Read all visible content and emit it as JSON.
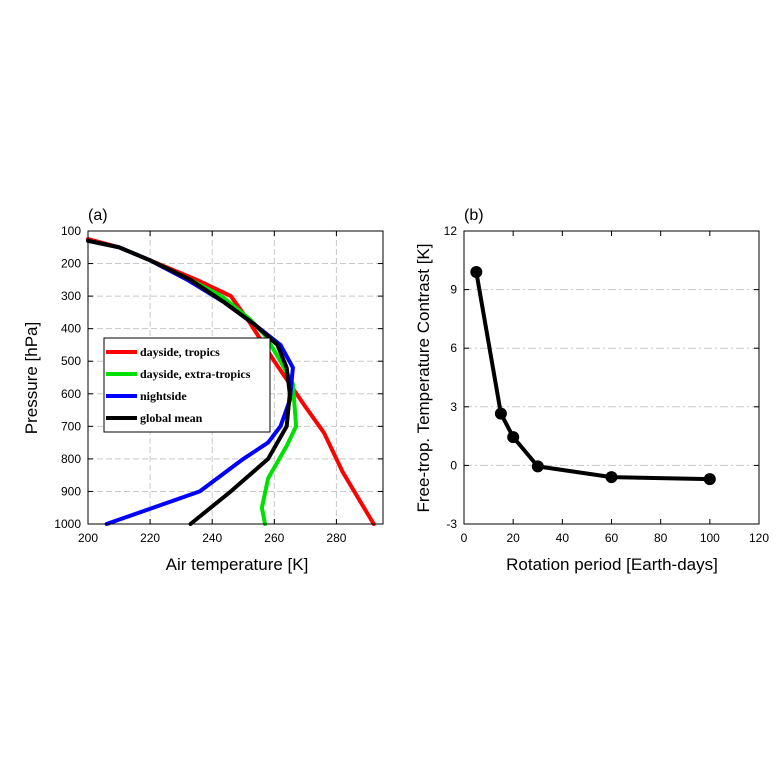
{
  "chart_data": [
    {
      "type": "line",
      "panel_label": "(a)",
      "xlabel": "Air temperature [K]",
      "ylabel": "Pressure [hPa]",
      "xlim": [
        200,
        295
      ],
      "ylim": [
        1000,
        100
      ],
      "y_inverted": true,
      "xticks": [
        200,
        220,
        240,
        260,
        280
      ],
      "yticks": [
        100,
        200,
        300,
        400,
        500,
        600,
        700,
        800,
        900,
        1000
      ],
      "grid": true,
      "legend_position": "center-left",
      "series": [
        {
          "name": "dayside, tropics",
          "color": "#ff0000",
          "points": [
            [
              200,
              125
            ],
            [
              210,
              150
            ],
            [
              220,
              190
            ],
            [
              235,
              250
            ],
            [
              246,
              300
            ],
            [
              252,
              380
            ],
            [
              256,
              440
            ],
            [
              260,
              500
            ],
            [
              265,
              570
            ],
            [
              270,
              640
            ],
            [
              276,
              720
            ],
            [
              282,
              840
            ],
            [
              292,
              1000
            ]
          ]
        },
        {
          "name": "dayside, extra-tropics",
          "color": "#00e000",
          "points": [
            [
              200,
              130
            ],
            [
              210,
              150
            ],
            [
              220,
              190
            ],
            [
              233,
              250
            ],
            [
              243,
              300
            ],
            [
              252,
              370
            ],
            [
              257,
              420
            ],
            [
              262,
              500
            ],
            [
              266,
              570
            ],
            [
              267,
              700
            ],
            [
              264,
              760
            ],
            [
              258,
              860
            ],
            [
              256,
              950
            ],
            [
              257,
              1000
            ]
          ]
        },
        {
          "name": "nightside",
          "color": "#0000ff",
          "points": [
            [
              200,
              130
            ],
            [
              210,
              150
            ],
            [
              220,
              190
            ],
            [
              232,
              250
            ],
            [
              244,
              320
            ],
            [
              254,
              390
            ],
            [
              262,
              450
            ],
            [
              266,
              520
            ],
            [
              265,
              620
            ],
            [
              262,
              700
            ],
            [
              258,
              750
            ],
            [
              250,
              800
            ],
            [
              236,
              900
            ],
            [
              206,
              1000
            ]
          ]
        },
        {
          "name": "global mean",
          "color": "#000000",
          "points": [
            [
              200,
              130
            ],
            [
              210,
              150
            ],
            [
              220,
              190
            ],
            [
              233,
              250
            ],
            [
              244,
              320
            ],
            [
              254,
              390
            ],
            [
              261,
              450
            ],
            [
              264,
              520
            ],
            [
              265,
              600
            ],
            [
              264,
              700
            ],
            [
              258,
              800
            ],
            [
              246,
              900
            ],
            [
              233,
              1000
            ]
          ]
        }
      ]
    },
    {
      "type": "line",
      "panel_label": "(b)",
      "xlabel": "Rotation period [Earth-days]",
      "ylabel": "Free-trop. Temperature Contrast [K]",
      "xlim": [
        0,
        120
      ],
      "ylim": [
        -3,
        12
      ],
      "xticks": [
        0,
        20,
        40,
        60,
        80,
        100,
        120
      ],
      "yticks": [
        -3,
        0,
        3,
        6,
        9,
        12
      ],
      "grid": true,
      "series": [
        {
          "name": "contrast",
          "color": "#000000",
          "x": [
            5,
            15,
            20,
            30,
            60,
            100
          ],
          "y": [
            9.9,
            2.65,
            1.45,
            -0.05,
            -0.6,
            -0.7
          ]
        }
      ]
    }
  ]
}
